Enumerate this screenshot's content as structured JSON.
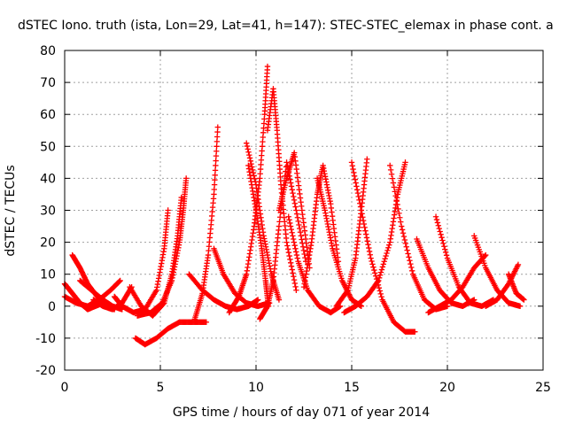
{
  "chart_data": {
    "type": "scatter",
    "title": "dSTEC Iono. truth (ista, Lon=29, Lat=41, h=147): STEC-STEC_elemax in phase cont. a",
    "xlabel": "GPS time / hours of day 071 of year 2014",
    "ylabel": "dSTEC  / TECUs",
    "xlim": [
      0,
      25
    ],
    "ylim": [
      -20,
      80
    ],
    "x_ticks": [
      0,
      5,
      10,
      15,
      20,
      25
    ],
    "y_ticks": [
      -20,
      -10,
      0,
      10,
      20,
      30,
      40,
      50,
      60,
      70,
      80
    ],
    "grid": true,
    "marker": "+",
    "color": "#ff0000",
    "series": [
      {
        "x": [
          0.0,
          0.4,
          0.8,
          1.2,
          1.6,
          2.0
        ],
        "y": [
          7,
          4,
          1,
          -1,
          0,
          1
        ]
      },
      {
        "x": [
          0.0,
          0.6,
          1.2,
          1.8,
          2.4,
          2.9
        ],
        "y": [
          3,
          1,
          0,
          2,
          5,
          8
        ]
      },
      {
        "x": [
          0.4,
          0.8,
          1.2,
          1.7,
          2.2,
          2.6
        ],
        "y": [
          16,
          12,
          7,
          3,
          0,
          -1
        ]
      },
      {
        "x": [
          0.8,
          1.4,
          2.0,
          2.5,
          3.0
        ],
        "y": [
          8,
          5,
          2,
          0,
          -1
        ]
      },
      {
        "x": [
          1.5,
          2.0,
          2.5,
          3.0,
          3.5
        ],
        "y": [
          2,
          0,
          -1,
          1,
          6
        ]
      },
      {
        "x": [
          2.6,
          3.0,
          3.6,
          4.2,
          4.8,
          5.2,
          5.4
        ],
        "y": [
          3,
          0,
          -2,
          -1,
          5,
          18,
          30
        ]
      },
      {
        "x": [
          3.4,
          4.0,
          4.6,
          5.2,
          5.6,
          5.9,
          6.1
        ],
        "y": [
          6,
          0,
          -3,
          1,
          10,
          22,
          34
        ]
      },
      {
        "x": [
          3.8,
          4.5,
          5.1,
          5.6,
          6.0,
          6.2,
          6.35
        ],
        "y": [
          -3,
          -2,
          1,
          8,
          20,
          30,
          40
        ]
      },
      {
        "x": [
          3.7,
          4.2,
          4.8,
          5.4,
          6.0,
          6.7,
          7.4
        ],
        "y": [
          -10,
          -12,
          -10,
          -7,
          -5,
          -5,
          -5
        ]
      },
      {
        "x": [
          6.8,
          7.2,
          7.5,
          7.8,
          8.0
        ],
        "y": [
          -4,
          4,
          16,
          35,
          56
        ]
      },
      {
        "x": [
          6.5,
          7.2,
          7.8,
          8.4,
          9.0,
          9.6,
          10.1
        ],
        "y": [
          10,
          5,
          2,
          0,
          -1,
          0,
          2
        ]
      },
      {
        "x": [
          7.8,
          8.3,
          8.9,
          9.5,
          10.1,
          10.7
        ],
        "y": [
          18,
          10,
          4,
          1,
          0,
          1
        ]
      },
      {
        "x": [
          8.6,
          9.1,
          9.5,
          9.9,
          10.2,
          10.45,
          10.6
        ],
        "y": [
          -2,
          3,
          10,
          25,
          40,
          60,
          75
        ]
      },
      {
        "x": [
          9.6,
          10.0,
          10.3,
          10.5,
          10.65
        ],
        "y": [
          44,
          30,
          18,
          8,
          0
        ]
      },
      {
        "x": [
          9.5,
          10.0,
          10.4,
          10.8,
          11.2
        ],
        "y": [
          51,
          38,
          22,
          10,
          2
        ]
      },
      {
        "x": [
          10.2,
          10.6,
          10.9,
          11.2,
          11.6,
          12.1,
          12.6
        ],
        "y": [
          -4,
          0,
          8,
          25,
          45,
          30,
          14
        ]
      },
      {
        "x": [
          10.6,
          10.9,
          11.1,
          11.3,
          11.6,
          12.1
        ],
        "y": [
          55,
          68,
          55,
          38,
          20,
          5
        ]
      },
      {
        "x": [
          11.2,
          11.6,
          12.0,
          12.4,
          12.8
        ],
        "y": [
          30,
          40,
          48,
          30,
          12
        ]
      },
      {
        "x": [
          11.7,
          12.2,
          12.7,
          13.3,
          13.9,
          14.4
        ],
        "y": [
          28,
          14,
          5,
          0,
          -2,
          0
        ]
      },
      {
        "x": [
          12.5,
          12.9,
          13.2,
          13.5,
          13.9,
          14.3
        ],
        "y": [
          6,
          20,
          35,
          44,
          32,
          14
        ]
      },
      {
        "x": [
          13.2,
          13.6,
          14.0,
          14.5,
          15.0,
          15.5
        ],
        "y": [
          40,
          30,
          18,
          8,
          2,
          0
        ]
      },
      {
        "x": [
          14.2,
          14.8,
          15.2,
          15.5,
          15.8
        ],
        "y": [
          0,
          5,
          15,
          30,
          46
        ]
      },
      {
        "x": [
          15.0,
          15.5,
          16.0,
          16.6,
          17.2,
          17.8,
          18.3
        ],
        "y": [
          45,
          30,
          15,
          2,
          -5,
          -8,
          -8
        ]
      },
      {
        "x": [
          14.6,
          15.2,
          15.8,
          16.4,
          17.0,
          17.4,
          17.8
        ],
        "y": [
          -2,
          0,
          3,
          8,
          20,
          35,
          45
        ]
      },
      {
        "x": [
          17.0,
          17.6,
          18.2,
          18.8,
          19.4,
          20.0
        ],
        "y": [
          44,
          25,
          10,
          2,
          -1,
          0
        ]
      },
      {
        "x": [
          18.4,
          19.0,
          19.6,
          20.2,
          20.8,
          21.4
        ],
        "y": [
          21,
          12,
          5,
          1,
          0,
          2
        ]
      },
      {
        "x": [
          19.4,
          20.0,
          20.6,
          21.2,
          21.8,
          22.4
        ],
        "y": [
          28,
          15,
          6,
          1,
          0,
          2
        ]
      },
      {
        "x": [
          19.0,
          19.6,
          20.2,
          20.8,
          21.4,
          22.0
        ],
        "y": [
          -2,
          0,
          2,
          6,
          12,
          16
        ]
      },
      {
        "x": [
          21.4,
          22.0,
          22.6,
          23.2,
          23.8
        ],
        "y": [
          22,
          12,
          5,
          1,
          0
        ]
      },
      {
        "x": [
          22.0,
          22.6,
          23.2,
          23.7
        ],
        "y": [
          0,
          2,
          7,
          13
        ]
      },
      {
        "x": [
          23.2,
          23.6,
          24.0
        ],
        "y": [
          10,
          4,
          2
        ]
      }
    ]
  }
}
